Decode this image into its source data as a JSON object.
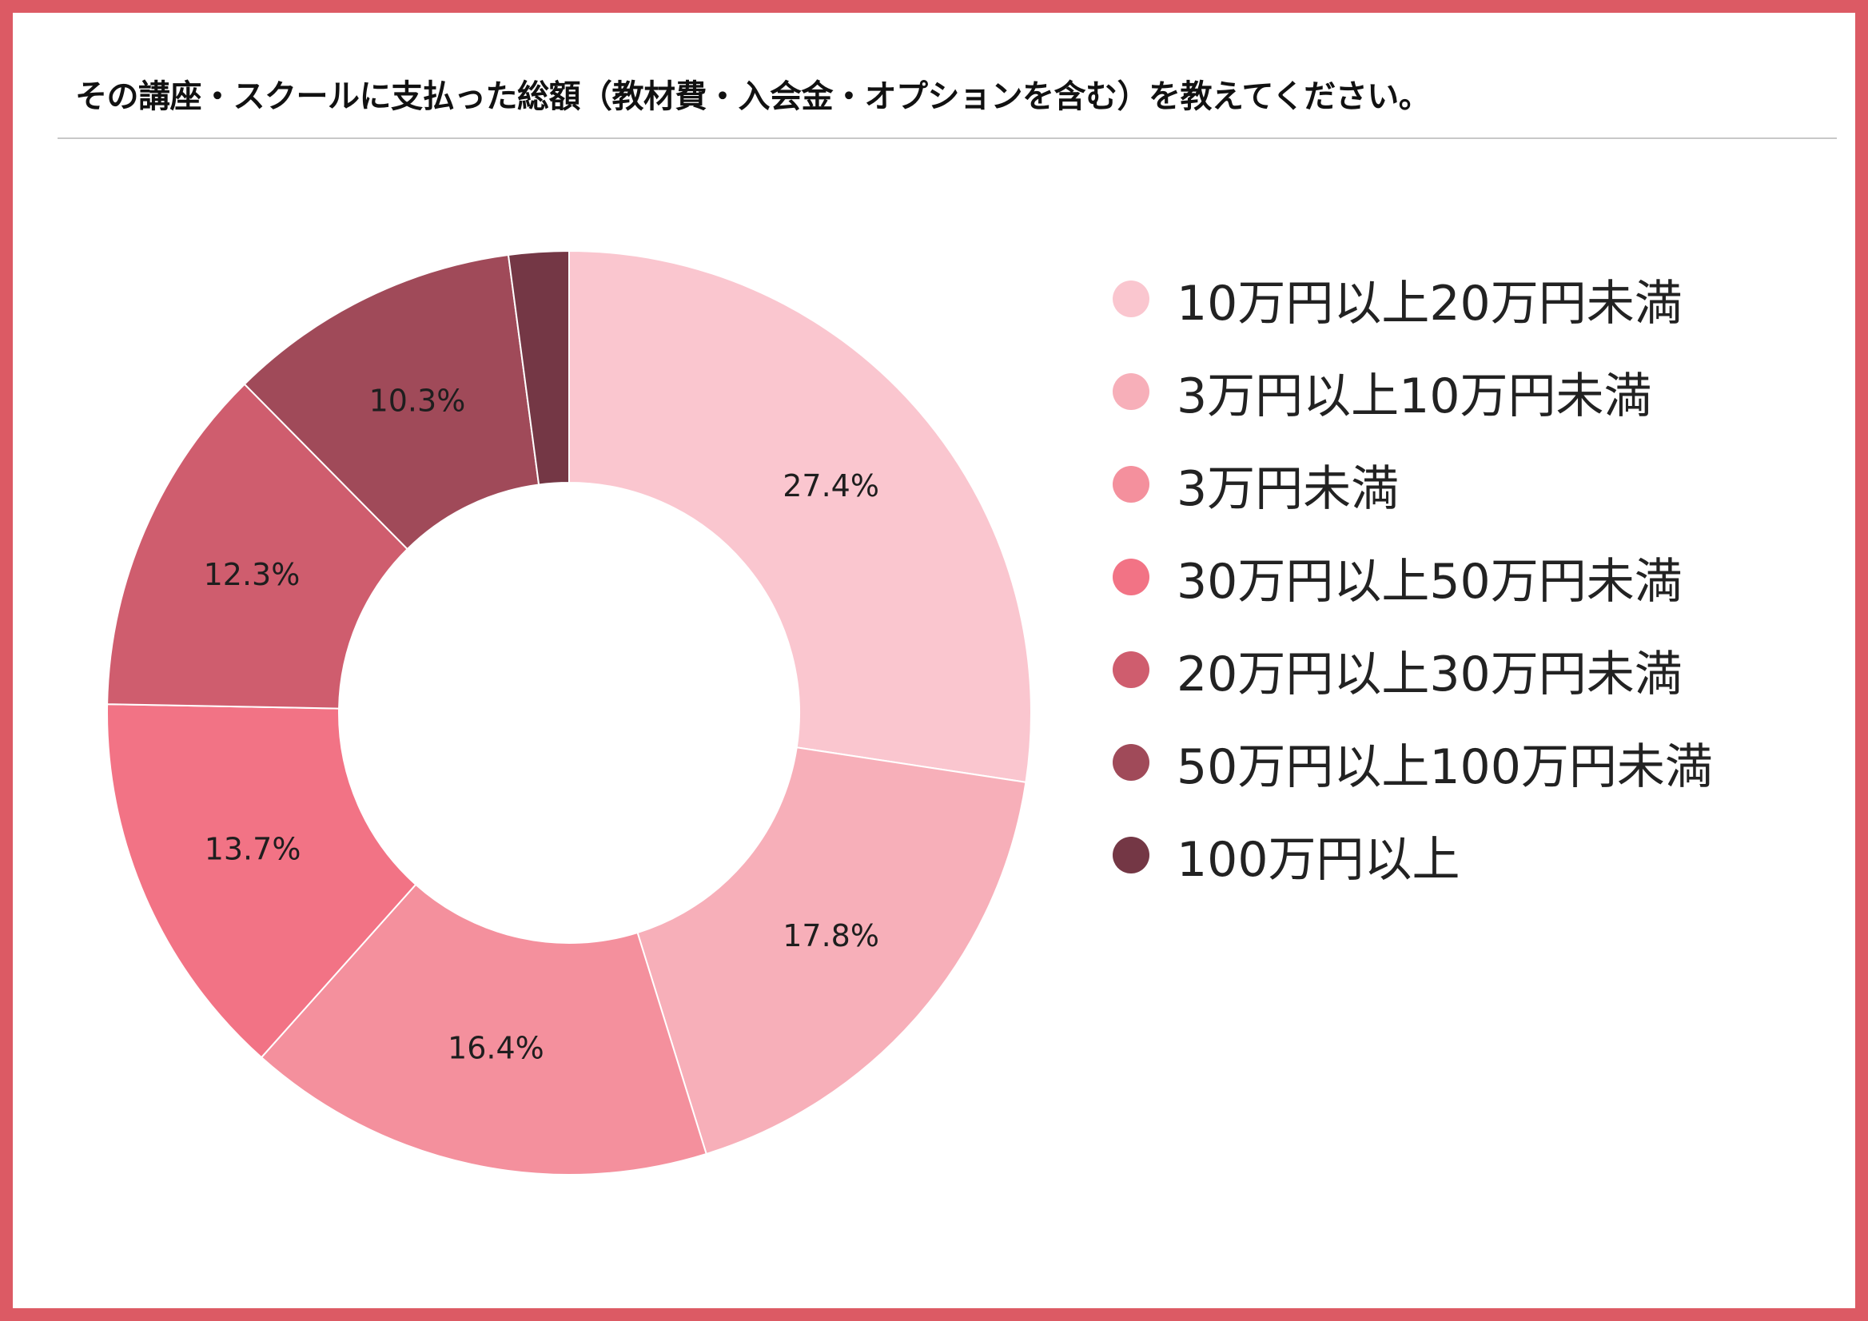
{
  "title": "その講座・スクールに支払った総額（教材費・入会金・オプションを含む）を教えてください。",
  "chart_data": {
    "type": "pie",
    "donut": true,
    "categories": [
      "10万円以上20万円未満",
      "3万円以上10万円未満",
      "3万円未満",
      "30万円以上50万円未満",
      "20万円以上30万円未満",
      "50万円以上100万円未満",
      "100万円以上"
    ],
    "values": [
      27.4,
      17.8,
      16.4,
      13.7,
      12.3,
      10.3,
      2.1
    ],
    "labels": [
      "27.4%",
      "17.8%",
      "16.4%",
      "13.7%",
      "12.3%",
      "10.3%",
      ""
    ],
    "colors": [
      "#fac6cf",
      "#f7afb9",
      "#f4909d",
      "#f27385",
      "#cf5d6e",
      "#a04a59",
      "#743745"
    ],
    "legend_position": "right"
  }
}
